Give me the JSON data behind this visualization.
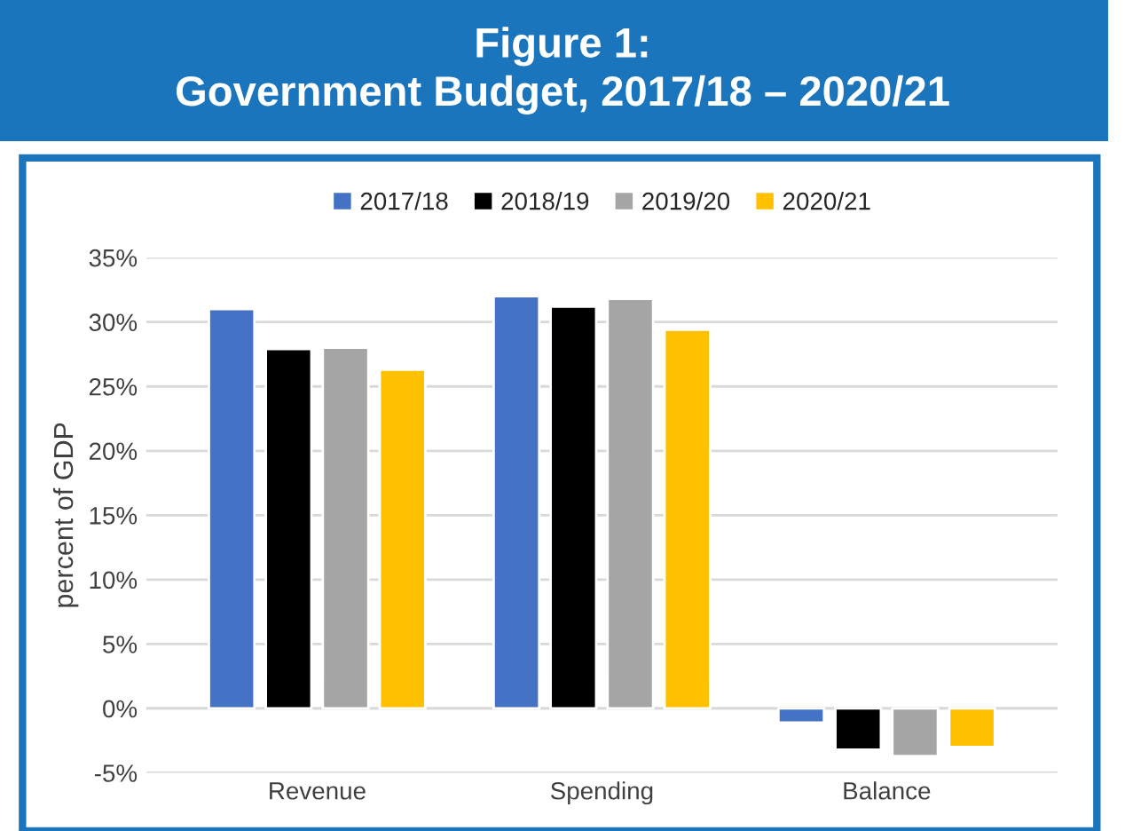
{
  "chart_data": {
    "type": "bar",
    "title": "Figure 1:\nGovernment Budget, 2017/18 – 2020/21",
    "categories": [
      "Revenue",
      "Spending",
      "Balance"
    ],
    "series": [
      {
        "name": "2017/18",
        "color": "#4472c4",
        "values": [
          31.0,
          32.0,
          -1.1
        ]
      },
      {
        "name": "2018/19",
        "color": "#000000",
        "values": [
          27.9,
          31.2,
          -3.2
        ]
      },
      {
        "name": "2019/20",
        "color": "#a5a5a5",
        "values": [
          28.0,
          31.8,
          -3.7
        ]
      },
      {
        "name": "2020/21",
        "color": "#ffc000",
        "values": [
          26.3,
          29.4,
          -3.0
        ]
      }
    ],
    "ylabel": "percent of GDP",
    "ylim": [
      -5,
      35
    ],
    "yticks": [
      {
        "value": -5,
        "label": "-5%"
      },
      {
        "value": 0,
        "label": "0%"
      },
      {
        "value": 5,
        "label": "5%"
      },
      {
        "value": 10,
        "label": "10%"
      },
      {
        "value": 15,
        "label": "15%"
      },
      {
        "value": 20,
        "label": "20%"
      },
      {
        "value": 25,
        "label": "25%"
      },
      {
        "value": 30,
        "label": "30%"
      },
      {
        "value": 35,
        "label": "35%"
      }
    ],
    "grid": "y",
    "legend": "top"
  }
}
